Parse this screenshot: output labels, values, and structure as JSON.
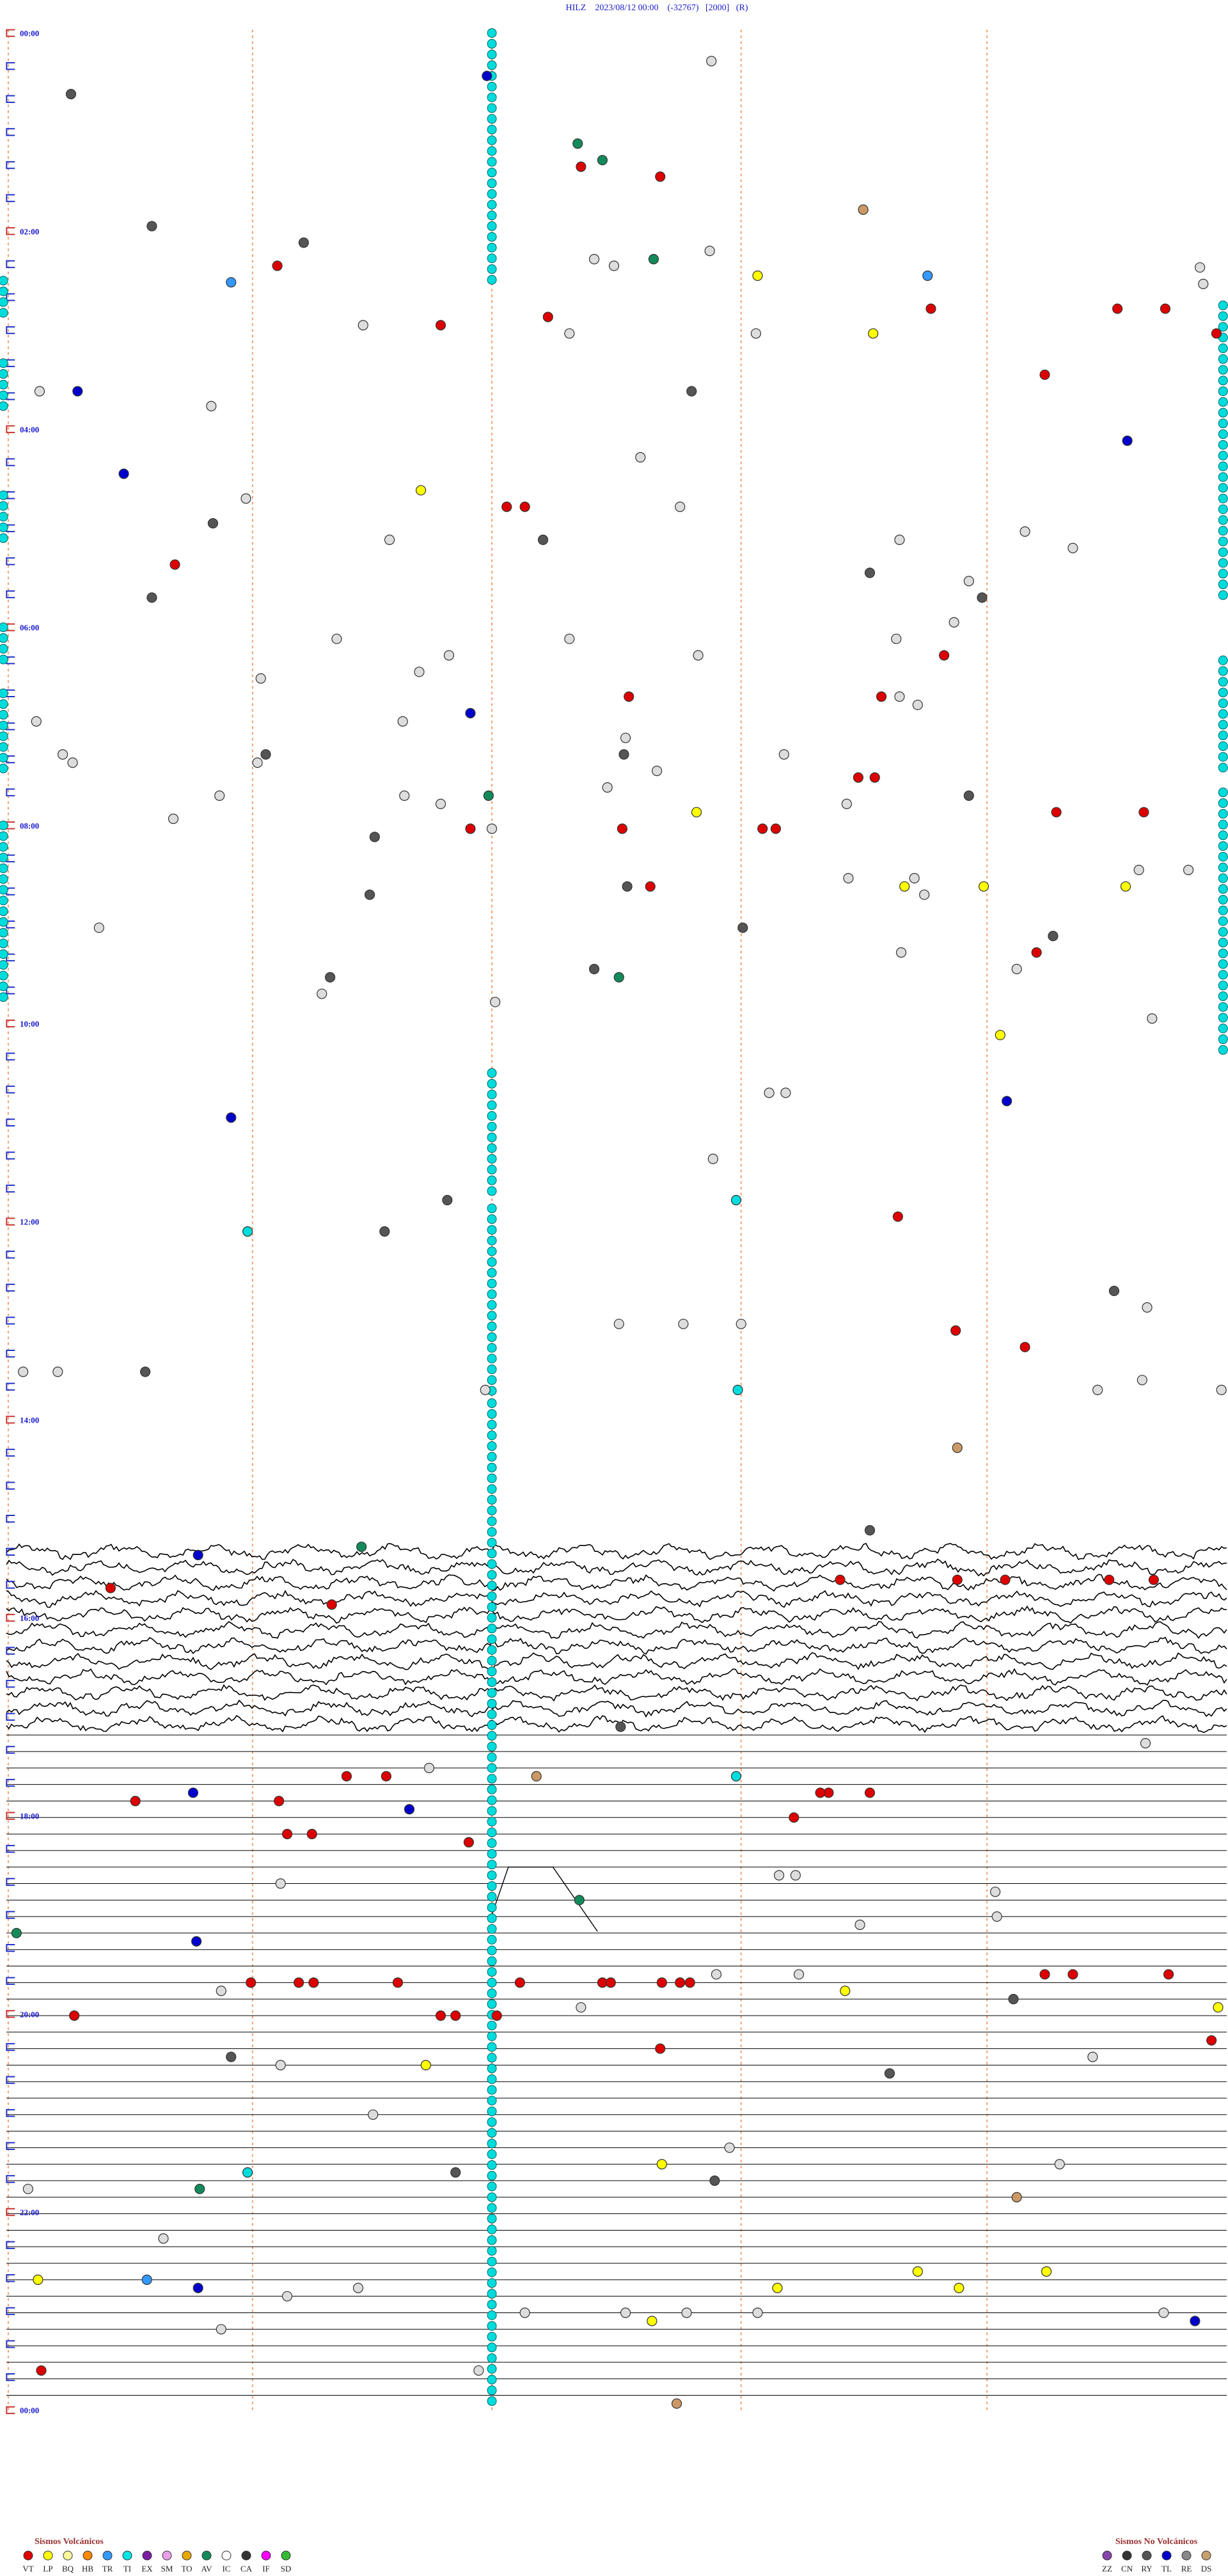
{
  "header": {
    "title": "HILZ    2023/08/12 00:00    (-32767)   [2000]   (R)"
  },
  "time_labels": [
    "00:00",
    "02:00",
    "04:00",
    "06:00",
    "08:00",
    "10:00",
    "12:00",
    "14:00",
    "16:00",
    "18:00",
    "20:00",
    "22:00",
    "00:00"
  ],
  "legend": {
    "volcanic": {
      "title": "Sismos Volcánicos",
      "codes": [
        "VT",
        "LP",
        "BQ",
        "HB",
        "TR",
        "TI",
        "EX",
        "SM",
        "TO",
        "AV",
        "IC",
        "CA",
        "IF",
        "SD"
      ]
    },
    "non_volcanic": {
      "title": "Sismos No Volcánicos",
      "codes": [
        "ZZ",
        "CN",
        "RY",
        "TL",
        "RE",
        "DS"
      ]
    }
  }
}
